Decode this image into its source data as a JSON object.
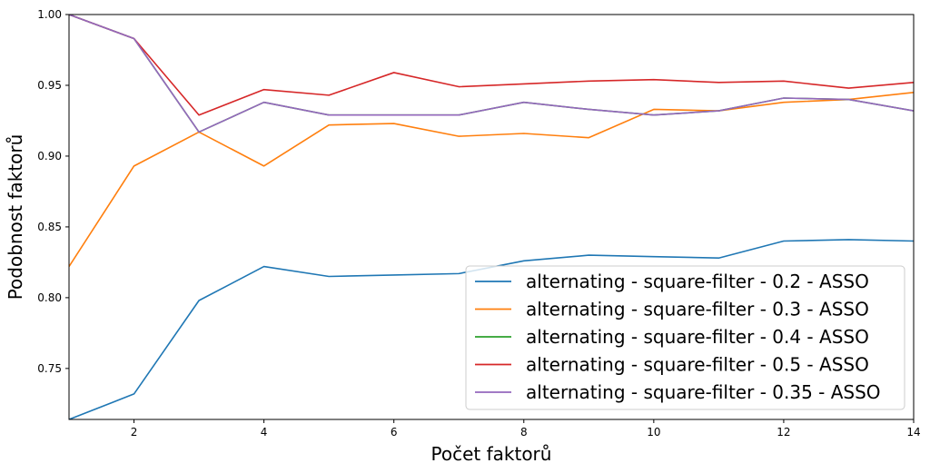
{
  "chart_data": {
    "type": "line",
    "xlabel": "Počet faktorů",
    "ylabel": "Podobnost faktorů",
    "xlim": [
      1,
      14
    ],
    "ylim": [
      0.714,
      1.0
    ],
    "xticks": [
      2,
      4,
      6,
      8,
      10,
      12,
      14
    ],
    "xtick_labels": [
      "2",
      "4",
      "6",
      "8",
      "10",
      "12",
      "14"
    ],
    "yticks": [
      0.75,
      0.8,
      0.85,
      0.9,
      0.95,
      1.0
    ],
    "ytick_labels": [
      "0.75",
      "0.80",
      "0.85",
      "0.90",
      "0.95",
      "1.00"
    ],
    "grid": false,
    "legend_position": "lower-right",
    "x": [
      1,
      2,
      3,
      4,
      5,
      6,
      7,
      8,
      9,
      10,
      11,
      12,
      13,
      14
    ],
    "series": [
      {
        "name": "alternating - square-filter - 0.2 - ASSO",
        "color": "#1f77b4",
        "values": [
          0.714,
          0.732,
          0.798,
          0.822,
          0.815,
          0.816,
          0.817,
          0.826,
          0.83,
          0.829,
          0.828,
          0.84,
          0.841,
          0.84
        ]
      },
      {
        "name": "alternating - square-filter - 0.3 - ASSO",
        "color": "#ff7f0e",
        "values": [
          0.822,
          0.893,
          0.917,
          0.893,
          0.922,
          0.923,
          0.914,
          0.916,
          0.913,
          0.933,
          0.932,
          0.938,
          0.94,
          0.945
        ]
      },
      {
        "name": "alternating - square-filter - 0.4 - ASSO",
        "color": "#2ca02c",
        "values": [
          1.0,
          0.983,
          0.917,
          0.938,
          0.929,
          0.929,
          0.929,
          0.938,
          0.933,
          0.929,
          0.932,
          0.941,
          0.94,
          0.932
        ]
      },
      {
        "name": "alternating - square-filter - 0.5 - ASSO",
        "color": "#d62728",
        "values": [
          1.0,
          0.983,
          0.929,
          0.947,
          0.943,
          0.959,
          0.949,
          0.951,
          0.953,
          0.954,
          0.952,
          0.953,
          0.948,
          0.952
        ]
      },
      {
        "name": "alternating - square-filter - 0.35 - ASSO",
        "color": "#9467bd",
        "values": [
          1.0,
          0.983,
          0.917,
          0.938,
          0.929,
          0.929,
          0.929,
          0.938,
          0.933,
          0.929,
          0.932,
          0.941,
          0.94,
          0.932
        ]
      }
    ]
  }
}
